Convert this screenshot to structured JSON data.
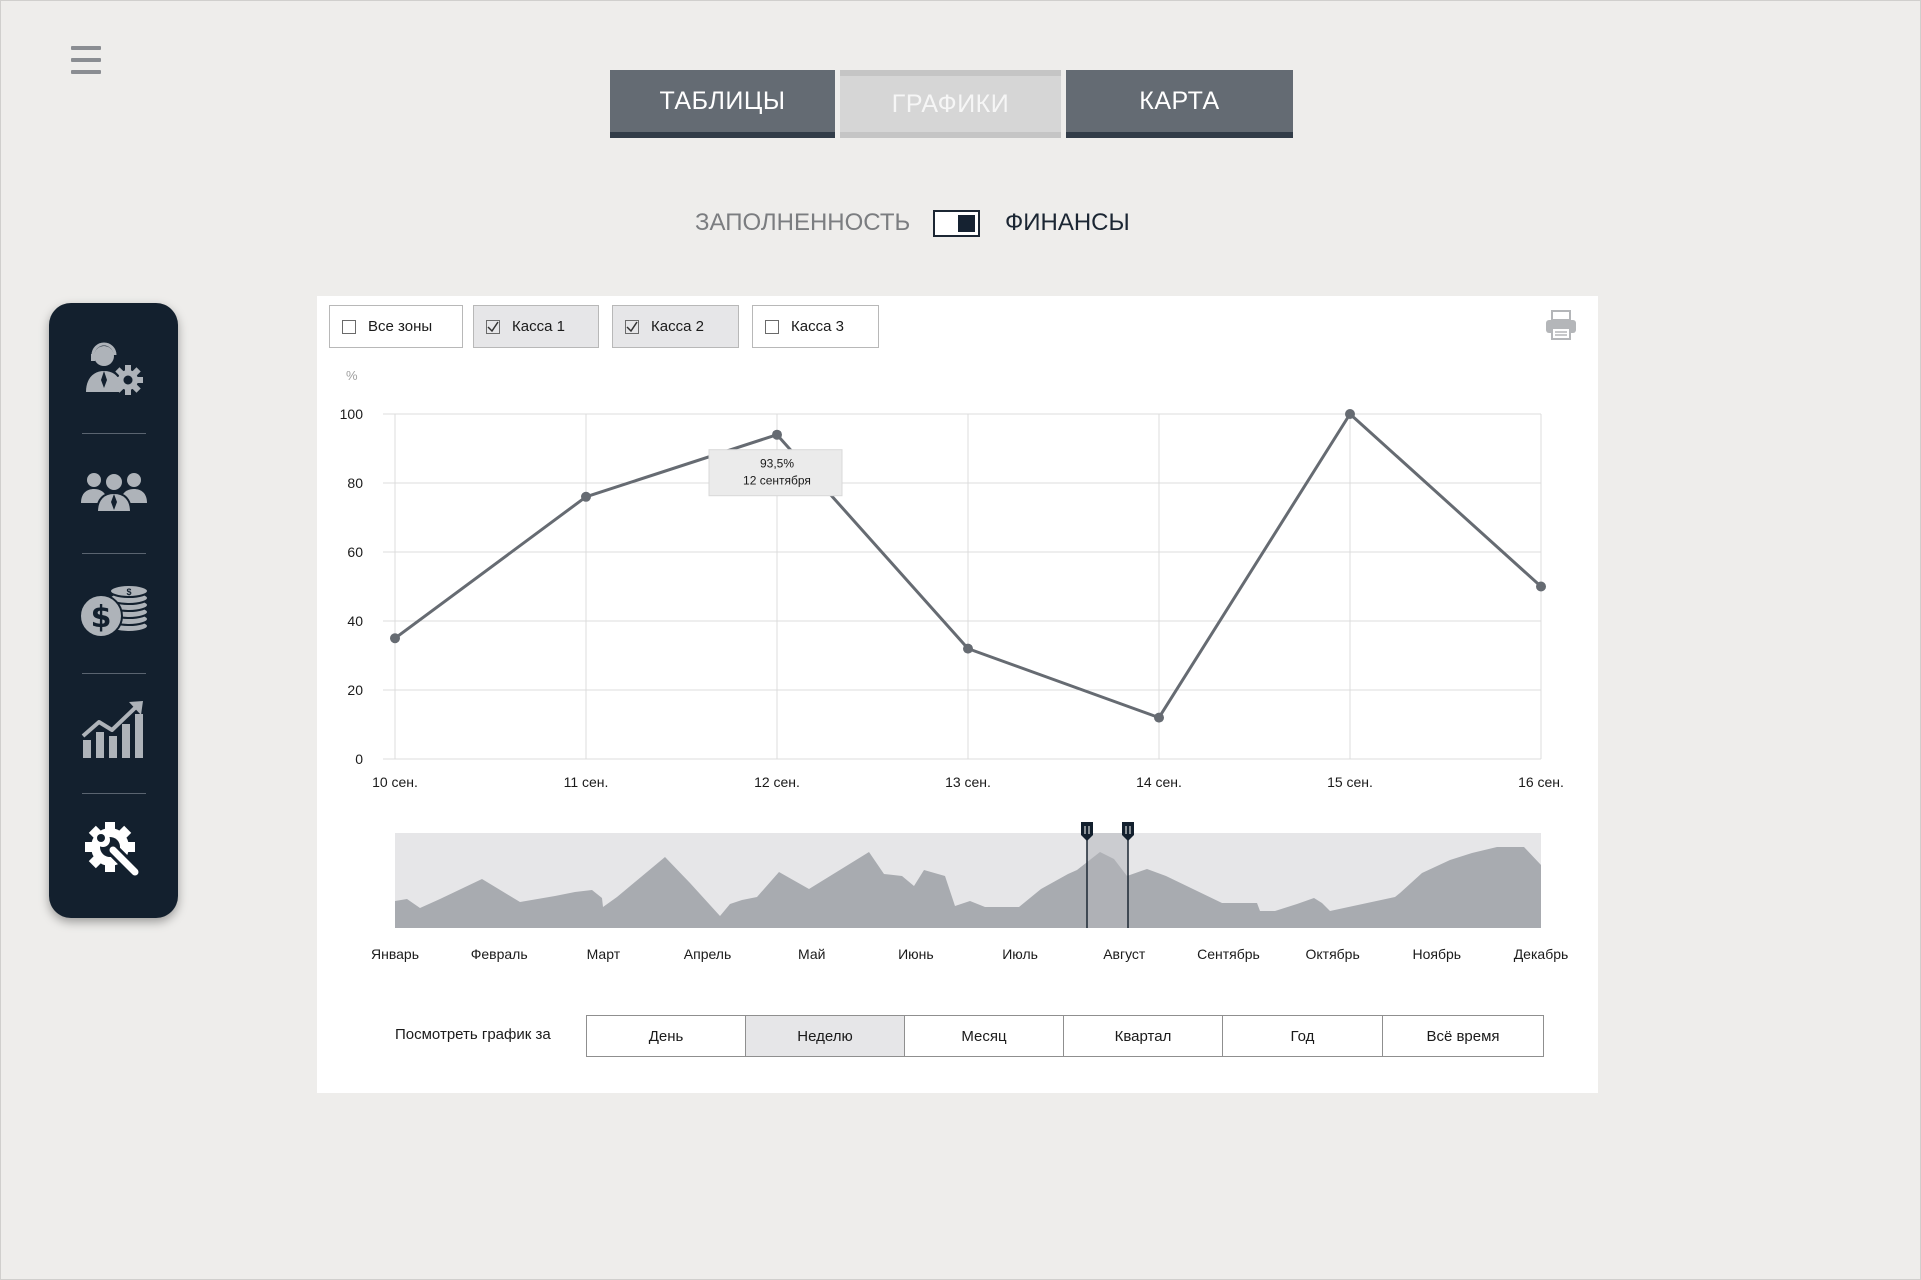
{
  "tabs": [
    {
      "label": "ТАБЛИЦЫ",
      "active": false
    },
    {
      "label": "ГРАФИКИ",
      "active": true
    },
    {
      "label": "КАРТА",
      "active": false
    }
  ],
  "mode_switch": {
    "left_label": "ЗАПОЛНЕННОСТЬ",
    "right_label": "ФИНАНСЫ",
    "selected": "ФИНАНСЫ"
  },
  "sidebar": {
    "items": [
      {
        "icon": "operator-settings-icon"
      },
      {
        "icon": "users-group-icon"
      },
      {
        "icon": "money-coins-icon"
      },
      {
        "icon": "growth-chart-icon"
      },
      {
        "icon": "settings-tools-icon",
        "active": true
      }
    ]
  },
  "filters": [
    {
      "label": "Все зоны",
      "checked": false
    },
    {
      "label": "Касса 1",
      "checked": true
    },
    {
      "label": "Касса 2",
      "checked": true
    },
    {
      "label": "Касса 3",
      "checked": false
    }
  ],
  "chart_data": {
    "type": "line",
    "ylabel": "%",
    "ylim": [
      0,
      100
    ],
    "yticks": [
      "100",
      "80",
      "60",
      "40",
      "20",
      "0"
    ],
    "categories": [
      "10 сен.",
      "11 сен.",
      "12 сен.",
      "13 сен.",
      "14 сен.",
      "15 сен.",
      "16 сен."
    ],
    "values": [
      35,
      76,
      94,
      32,
      12,
      100,
      50
    ],
    "grid": true,
    "tooltip": {
      "value": "93,5%",
      "date": "12 сентября",
      "index": 2
    }
  },
  "overview": {
    "months": [
      "Январь",
      "Февраль",
      "Март",
      "Апрель",
      "Май",
      "Июнь",
      "Июль",
      "Август",
      "Сентябрь",
      "Октябрь",
      "Ноябрь",
      "Декабрь"
    ]
  },
  "period": {
    "label": "Посмотреть график за",
    "options": [
      "День",
      "Неделю",
      "Месяц",
      "Квартал",
      "Год",
      "Всё время"
    ],
    "selected": "Неделю"
  },
  "colors": {
    "line": "#666b72",
    "sidebar": "#13202e",
    "tab_inactive": "#646b73",
    "overview_fill": "#a8abb0"
  }
}
